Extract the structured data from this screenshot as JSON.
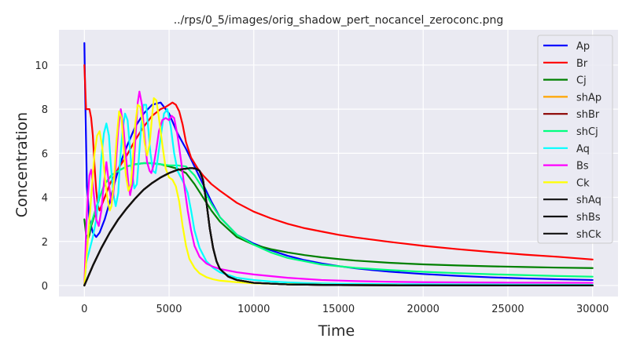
{
  "chart_data": {
    "type": "line",
    "title": "../rps/0_5/images/orig_shadow_pert_nocancel_zeroconc.png",
    "xlabel": "Time",
    "ylabel": "Concentration",
    "xlim": [
      -1500,
      31500
    ],
    "ylim": [
      -0.5,
      11.6
    ],
    "xticks": [
      0,
      5000,
      10000,
      15000,
      20000,
      25000,
      30000
    ],
    "yticks": [
      0,
      2,
      4,
      6,
      8,
      10
    ],
    "grid": true,
    "legend_position": "top-right",
    "series": [
      {
        "name": "Ap",
        "color": "#0000ff",
        "x": [
          0,
          50,
          150,
          300,
          500,
          700,
          900,
          1200,
          1500,
          1800,
          2100,
          2500,
          3000,
          3500,
          4000,
          4500,
          5000,
          5500,
          6000,
          6500,
          7000,
          7500,
          8000,
          9000,
          10000,
          11000,
          12000,
          13000,
          14000,
          15000,
          16000,
          17000,
          18000,
          20000,
          22000,
          24000,
          26000,
          28000,
          30000
        ],
        "y": [
          11.0,
          8.5,
          4.5,
          3.0,
          2.4,
          2.2,
          2.4,
          3.0,
          3.8,
          4.7,
          5.5,
          6.3,
          7.2,
          7.8,
          8.2,
          8.3,
          7.8,
          6.9,
          6.2,
          5.4,
          4.6,
          3.8,
          3.1,
          2.3,
          1.9,
          1.6,
          1.35,
          1.15,
          1.0,
          0.88,
          0.78,
          0.7,
          0.63,
          0.52,
          0.44,
          0.37,
          0.32,
          0.28,
          0.25
        ]
      },
      {
        "name": "Br",
        "color": "#ff0000",
        "x": [
          0,
          50,
          100,
          200,
          300,
          400,
          500,
          600,
          700,
          800,
          900,
          1000,
          1300,
          1500,
          2000,
          2500,
          3000,
          3500,
          4000,
          4500,
          4800,
          5000,
          5200,
          5400,
          5600,
          5800,
          6000,
          6300,
          6700,
          7000,
          7500,
          8000,
          9000,
          10000,
          11000,
          12000,
          13000,
          14000,
          15000,
          16000,
          18000,
          20000,
          22000,
          24000,
          26000,
          28000,
          30000
        ],
        "y": [
          10.0,
          9.0,
          8.0,
          8.0,
          8.0,
          7.6,
          6.8,
          5.4,
          4.3,
          3.6,
          3.4,
          3.6,
          4.2,
          4.6,
          5.3,
          5.9,
          6.6,
          7.2,
          7.7,
          8.0,
          8.1,
          8.2,
          8.3,
          8.2,
          7.9,
          7.3,
          6.5,
          5.8,
          5.3,
          5.0,
          4.6,
          4.3,
          3.75,
          3.35,
          3.05,
          2.8,
          2.6,
          2.45,
          2.3,
          2.18,
          1.98,
          1.8,
          1.65,
          1.52,
          1.4,
          1.3,
          1.18
        ]
      },
      {
        "name": "Cj",
        "color": "#008000",
        "x": [
          0,
          100,
          200,
          300,
          400,
          600,
          900,
          1200,
          1600,
          2000,
          2500,
          3000,
          3500,
          4000,
          4500,
          5000,
          5500,
          6000,
          6500,
          7000,
          7500,
          8000,
          9000,
          10000,
          11000,
          12000,
          13000,
          14000,
          15000,
          16000,
          18000,
          20000,
          22000,
          24000,
          26000,
          28000,
          30000
        ],
        "y": [
          3.0,
          2.3,
          2.1,
          2.3,
          2.7,
          3.2,
          4.0,
          4.6,
          5.0,
          5.2,
          5.4,
          5.5,
          5.55,
          5.55,
          5.5,
          5.4,
          5.3,
          5.1,
          4.6,
          4.0,
          3.4,
          2.9,
          2.2,
          1.85,
          1.65,
          1.5,
          1.38,
          1.28,
          1.2,
          1.13,
          1.03,
          0.96,
          0.91,
          0.87,
          0.84,
          0.81,
          0.79
        ]
      },
      {
        "name": "shAp",
        "color": "#ffa500",
        "x": [
          0,
          500,
          1000,
          1500,
          2000,
          2500,
          3000,
          3500,
          4000,
          4500,
          5000,
          5500,
          6000,
          6200,
          6400,
          6600,
          6800,
          7000,
          7200,
          7400,
          7600,
          7800,
          8000,
          8500,
          9000,
          10000,
          12000,
          15000,
          20000,
          25000,
          30000
        ],
        "y": [
          0,
          0.9,
          1.7,
          2.4,
          3.0,
          3.5,
          3.95,
          4.35,
          4.65,
          4.9,
          5.1,
          5.25,
          5.3,
          5.32,
          5.32,
          5.3,
          5.2,
          4.8,
          3.8,
          2.6,
          1.7,
          1.1,
          0.75,
          0.4,
          0.25,
          0.12,
          0.05,
          0.02,
          0.01,
          0.0,
          0.0
        ]
      },
      {
        "name": "shBr",
        "color": "#8b0000",
        "x": [
          0,
          500,
          1000,
          1500,
          2000,
          2500,
          3000,
          3500,
          4000,
          4500,
          5000,
          5500,
          6000,
          6200,
          6400,
          6600,
          6800,
          7000,
          7200,
          7400,
          7600,
          7800,
          8000,
          8500,
          9000,
          10000,
          12000,
          15000,
          20000,
          25000,
          30000
        ],
        "y": [
          0,
          0.9,
          1.7,
          2.4,
          3.0,
          3.5,
          3.95,
          4.35,
          4.65,
          4.9,
          5.1,
          5.25,
          5.3,
          5.32,
          5.32,
          5.3,
          5.2,
          4.8,
          3.8,
          2.6,
          1.7,
          1.1,
          0.75,
          0.4,
          0.25,
          0.12,
          0.05,
          0.02,
          0.01,
          0.0,
          0.0
        ]
      },
      {
        "name": "shCj",
        "color": "#00ff7f",
        "x": [
          0,
          100,
          200,
          300,
          400,
          600,
          900,
          1200,
          1600,
          2000,
          2500,
          3000,
          3500,
          4000,
          4500,
          5000,
          5500,
          6000,
          6500,
          7000,
          7500,
          8000,
          9000,
          10000,
          11000,
          12000,
          14000,
          16000,
          18000,
          20000,
          22000,
          24000,
          26000,
          28000,
          30000
        ],
        "y": [
          0,
          1.0,
          2.2,
          2.5,
          2.8,
          3.3,
          4.0,
          4.6,
          5.0,
          5.2,
          5.4,
          5.5,
          5.55,
          5.55,
          5.5,
          5.45,
          5.45,
          5.4,
          5.0,
          4.4,
          3.7,
          3.1,
          2.3,
          1.85,
          1.5,
          1.25,
          0.95,
          0.8,
          0.7,
          0.62,
          0.56,
          0.51,
          0.47,
          0.43,
          0.4
        ]
      },
      {
        "name": "Aq",
        "color": "#00ffff",
        "x": [
          0,
          100,
          300,
          500,
          700,
          900,
          1000,
          1150,
          1300,
          1450,
          1550,
          1700,
          1850,
          2000,
          2100,
          2250,
          2400,
          2550,
          2650,
          2800,
          2950,
          3100,
          3200,
          3350,
          3500,
          3650,
          3750,
          3900,
          4050,
          4200,
          4300,
          4500,
          4700,
          4900,
          5100,
          5300,
          5500,
          5700,
          5900,
          6100,
          6300,
          6500,
          6800,
          7200,
          7600,
          8000,
          9000,
          10000,
          11000,
          12000,
          13000,
          15000,
          18000,
          22000,
          26000,
          30000
        ],
        "y": [
          0,
          1.0,
          1.6,
          2.2,
          3.0,
          4.5,
          5.8,
          6.9,
          7.35,
          6.8,
          5.6,
          4.2,
          3.6,
          4.2,
          5.6,
          7.0,
          7.8,
          7.5,
          6.6,
          5.2,
          4.4,
          4.6,
          5.6,
          7.2,
          8.2,
          8.2,
          7.3,
          6.0,
          5.2,
          5.1,
          5.6,
          6.7,
          7.8,
          8.0,
          7.2,
          6.0,
          5.2,
          4.9,
          4.6,
          4.2,
          3.4,
          2.5,
          1.7,
          1.1,
          0.8,
          0.6,
          0.35,
          0.25,
          0.18,
          0.14,
          0.11,
          0.08,
          0.06,
          0.05,
          0.04,
          0.03
        ]
      },
      {
        "name": "Bs",
        "color": "#ff00ff",
        "x": [
          0,
          100,
          200,
          300,
          400,
          500,
          600,
          700,
          850,
          1000,
          1150,
          1300,
          1450,
          1600,
          1700,
          1850,
          2000,
          2150,
          2300,
          2450,
          2600,
          2700,
          2850,
          3000,
          3150,
          3250,
          3400,
          3550,
          3700,
          3850,
          3950,
          4100,
          4250,
          4400,
          4600,
          4800,
          5000,
          5150,
          5300,
          5500,
          5700,
          5900,
          6100,
          6300,
          6500,
          6800,
          7200,
          7600,
          8000,
          9000,
          10000,
          12000,
          14000,
          16000,
          18000,
          20000,
          25000,
          30000
        ],
        "y": [
          0,
          2.5,
          4.0,
          5.0,
          5.25,
          4.6,
          3.8,
          3.0,
          2.7,
          3.4,
          4.6,
          5.6,
          4.6,
          3.7,
          4.1,
          5.4,
          7.1,
          8.0,
          7.2,
          5.9,
          4.6,
          4.1,
          4.7,
          6.5,
          8.3,
          8.8,
          8.2,
          6.8,
          5.6,
          5.2,
          5.1,
          5.5,
          6.2,
          7.0,
          7.5,
          7.6,
          7.5,
          7.7,
          7.6,
          6.8,
          5.7,
          4.5,
          3.4,
          2.5,
          1.8,
          1.3,
          1.0,
          0.85,
          0.75,
          0.6,
          0.5,
          0.35,
          0.25,
          0.2,
          0.17,
          0.15,
          0.13,
          0.12
        ]
      },
      {
        "name": "Ck",
        "color": "#ffff00",
        "x": [
          0,
          150,
          300,
          450,
          600,
          750,
          900,
          1050,
          1200,
          1350,
          1500,
          1600,
          1750,
          1900,
          2050,
          2200,
          2300,
          2450,
          2600,
          2750,
          2850,
          3000,
          3150,
          3300,
          3450,
          3550,
          3700,
          3850,
          4000,
          4100,
          4250,
          4400,
          4600,
          4800,
          5000,
          5200,
          5400,
          5600,
          5800,
          6000,
          6200,
          6500,
          6800,
          7200,
          7600,
          8000,
          9000,
          10000,
          12000,
          15000,
          20000,
          25000,
          30000
        ],
        "y": [
          0,
          1.5,
          3.0,
          4.5,
          6.0,
          6.8,
          7.0,
          6.3,
          5.0,
          4.0,
          3.4,
          3.6,
          4.8,
          6.6,
          7.9,
          7.6,
          6.4,
          5.0,
          4.3,
          4.6,
          5.6,
          7.3,
          8.2,
          8.1,
          7.3,
          6.5,
          5.9,
          6.4,
          7.7,
          8.5,
          8.4,
          7.6,
          6.4,
          5.3,
          4.9,
          4.8,
          4.5,
          3.8,
          2.7,
          1.8,
          1.2,
          0.8,
          0.55,
          0.38,
          0.28,
          0.22,
          0.15,
          0.1,
          0.06,
          0.03,
          0.01,
          0.0,
          0.0
        ]
      },
      {
        "name": "shAq",
        "color": "#111111",
        "x": [
          0,
          500,
          1000,
          1500,
          2000,
          2500,
          3000,
          3500,
          4000,
          4500,
          5000,
          5500,
          6000,
          6200,
          6400,
          6600,
          6800,
          7000,
          7200,
          7400,
          7600,
          7800,
          8000,
          8500,
          9000,
          10000,
          12000,
          15000,
          20000,
          25000,
          30000
        ],
        "y": [
          0,
          0.9,
          1.7,
          2.4,
          3.0,
          3.5,
          3.95,
          4.35,
          4.65,
          4.9,
          5.1,
          5.25,
          5.3,
          5.32,
          5.32,
          5.3,
          5.2,
          4.8,
          3.8,
          2.6,
          1.7,
          1.1,
          0.75,
          0.4,
          0.25,
          0.12,
          0.05,
          0.02,
          0.01,
          0.0,
          0.0
        ]
      },
      {
        "name": "shBs",
        "color": "#111111",
        "x": [
          0,
          500,
          1000,
          1500,
          2000,
          2500,
          3000,
          3500,
          4000,
          4500,
          5000,
          5500,
          6000,
          6200,
          6400,
          6600,
          6800,
          7000,
          7200,
          7400,
          7600,
          7800,
          8000,
          8500,
          9000,
          10000,
          12000,
          15000,
          20000,
          25000,
          30000
        ],
        "y": [
          0,
          0.9,
          1.7,
          2.4,
          3.0,
          3.5,
          3.95,
          4.35,
          4.65,
          4.9,
          5.1,
          5.25,
          5.3,
          5.32,
          5.32,
          5.3,
          5.2,
          4.8,
          3.8,
          2.6,
          1.7,
          1.1,
          0.75,
          0.4,
          0.25,
          0.12,
          0.05,
          0.02,
          0.01,
          0.0,
          0.0
        ]
      },
      {
        "name": "shCk",
        "color": "#111111",
        "x": [
          0,
          500,
          1000,
          1500,
          2000,
          2500,
          3000,
          3500,
          4000,
          4500,
          5000,
          5500,
          6000,
          6200,
          6400,
          6600,
          6800,
          7000,
          7200,
          7400,
          7600,
          7800,
          8000,
          8500,
          9000,
          10000,
          12000,
          15000,
          20000,
          25000,
          30000
        ],
        "y": [
          0,
          0.9,
          1.7,
          2.4,
          3.0,
          3.5,
          3.95,
          4.35,
          4.65,
          4.9,
          5.1,
          5.25,
          5.3,
          5.32,
          5.32,
          5.3,
          5.2,
          4.8,
          3.8,
          2.6,
          1.7,
          1.1,
          0.75,
          0.4,
          0.25,
          0.12,
          0.05,
          0.02,
          0.01,
          0.0,
          0.0
        ]
      }
    ]
  }
}
